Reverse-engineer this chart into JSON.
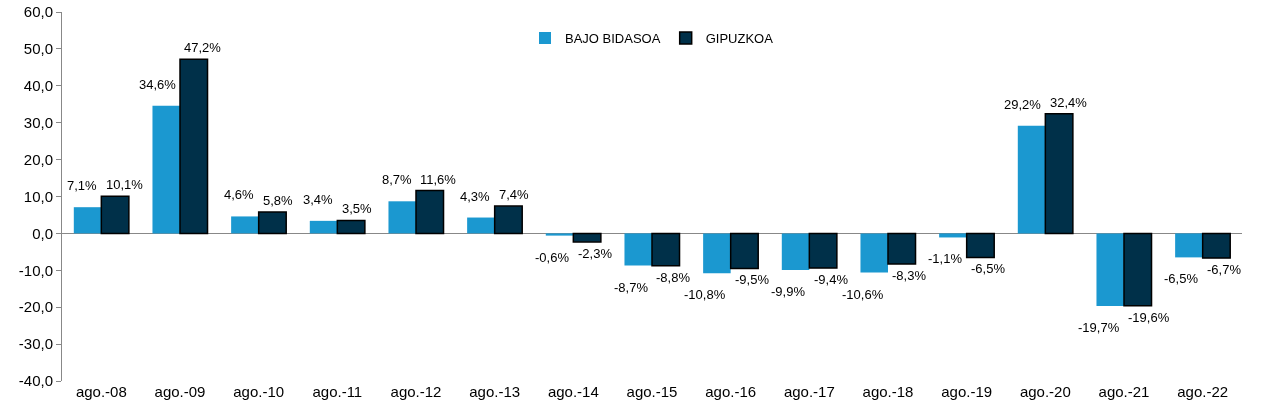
{
  "chart_data": {
    "type": "bar",
    "categories": [
      "ago.-08",
      "ago.-09",
      "ago.-10",
      "ago.-11",
      "ago.-12",
      "ago.-13",
      "ago.-14",
      "ago.-15",
      "ago.-16",
      "ago.-17",
      "ago.-18",
      "ago.-19",
      "ago.-20",
      "ago.-21",
      "ago.-22"
    ],
    "series": [
      {
        "name": "BAJO BIDASOA",
        "color": "#1b98d0",
        "values": [
          7.1,
          34.6,
          4.6,
          3.4,
          8.7,
          4.3,
          -0.6,
          -8.7,
          -10.8,
          -9.9,
          -10.6,
          -1.1,
          29.2,
          -19.7,
          -6.5
        ],
        "value_labels": [
          "7,1%",
          "34,6%",
          "4,6%",
          "3,4%",
          "8,7%",
          "4,3%",
          "-0,6%",
          "-8,7%",
          "-10,8%",
          "-9,9%",
          "-10,6%",
          "-1,1%",
          "29,2%",
          "-19,7%",
          "-6,5%"
        ]
      },
      {
        "name": "GIPUZKOA",
        "color": "#003049",
        "values": [
          10.1,
          47.2,
          5.8,
          3.5,
          11.6,
          7.4,
          -2.3,
          -8.8,
          -9.5,
          -9.4,
          -8.3,
          -6.5,
          32.4,
          -19.6,
          -6.7
        ],
        "value_labels": [
          "10,1%",
          "47,2%",
          "5,8%",
          "3,5%",
          "11,6%",
          "7,4%",
          "-2,3%",
          "-8,8%",
          "-9,5%",
          "-9,4%",
          "-8,3%",
          "-6,5%",
          "32,4%",
          "-19,6%",
          "-6,7%"
        ]
      }
    ],
    "ylim": [
      -40,
      60
    ],
    "yticks": [
      {
        "value": -40,
        "label": "-40,0"
      },
      {
        "value": -30,
        "label": "-30,0"
      },
      {
        "value": -20,
        "label": "-20,0"
      },
      {
        "value": -10,
        "label": "-10,0"
      },
      {
        "value": 0,
        "label": "0,0"
      },
      {
        "value": 10,
        "label": "10,0"
      },
      {
        "value": 20,
        "label": "20,0"
      },
      {
        "value": 30,
        "label": "30,0"
      },
      {
        "value": 40,
        "label": "40,0"
      },
      {
        "value": 50,
        "label": "50,0"
      },
      {
        "value": 60,
        "label": "60,0"
      }
    ],
    "legend": "top"
  }
}
